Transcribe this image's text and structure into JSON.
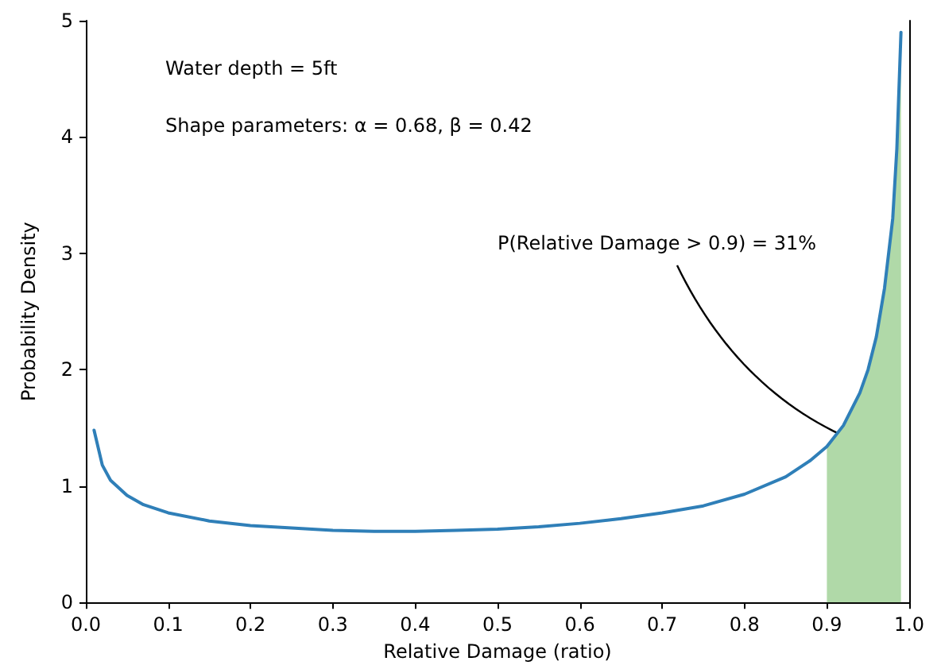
{
  "chart_data": {
    "type": "line",
    "xlabel": "Relative Damage (ratio)",
    "ylabel": "Probability Density",
    "annotations": [
      "Water depth = 5ft",
      "Shape parameters: α = 0.68, β = 0.42",
      "P(Relative Damage > 0.9) = 31%"
    ],
    "xlim": [
      0,
      1
    ],
    "xticks": [
      {
        "value": 0,
        "label": "0.0"
      },
      0.1,
      0.2,
      0.3,
      0.4,
      0.5,
      0.6,
      0.7,
      0.8,
      0.9,
      {
        "value": 1,
        "label": "1.0"
      }
    ],
    "ylim": [
      0,
      5
    ],
    "yticks": [
      0,
      1,
      2,
      3,
      4,
      5
    ],
    "grid": false,
    "marker": "none",
    "line_style": "solid",
    "series": [
      {
        "type": "area",
        "color": "#b0d9a8",
        "x": [
          0.9,
          0.92,
          0.94,
          0.95,
          0.96,
          0.97,
          0.98,
          0.985,
          0.99
        ],
        "values": [
          1.34,
          1.52,
          1.8,
          2.0,
          2.28,
          2.7,
          3.3,
          3.9,
          4.9
        ]
      },
      {
        "color": "#2f7fb8",
        "x": [
          0.01,
          0.02,
          0.03,
          0.05,
          0.07,
          0.1,
          0.15,
          0.2,
          0.25,
          0.3,
          0.35,
          0.4,
          0.45,
          0.5,
          0.55,
          0.6,
          0.65,
          0.7,
          0.75,
          0.8,
          0.85,
          0.88,
          0.9,
          0.92,
          0.94,
          0.95,
          0.96,
          0.97,
          0.98,
          0.985,
          0.99
        ],
        "values": [
          1.48,
          1.18,
          1.05,
          0.92,
          0.84,
          0.77,
          0.7,
          0.66,
          0.64,
          0.62,
          0.61,
          0.61,
          0.62,
          0.63,
          0.65,
          0.68,
          0.72,
          0.77,
          0.83,
          0.93,
          1.08,
          1.22,
          1.34,
          1.52,
          1.8,
          2.0,
          2.28,
          2.7,
          3.3,
          3.9,
          4.9
        ]
      }
    ]
  }
}
